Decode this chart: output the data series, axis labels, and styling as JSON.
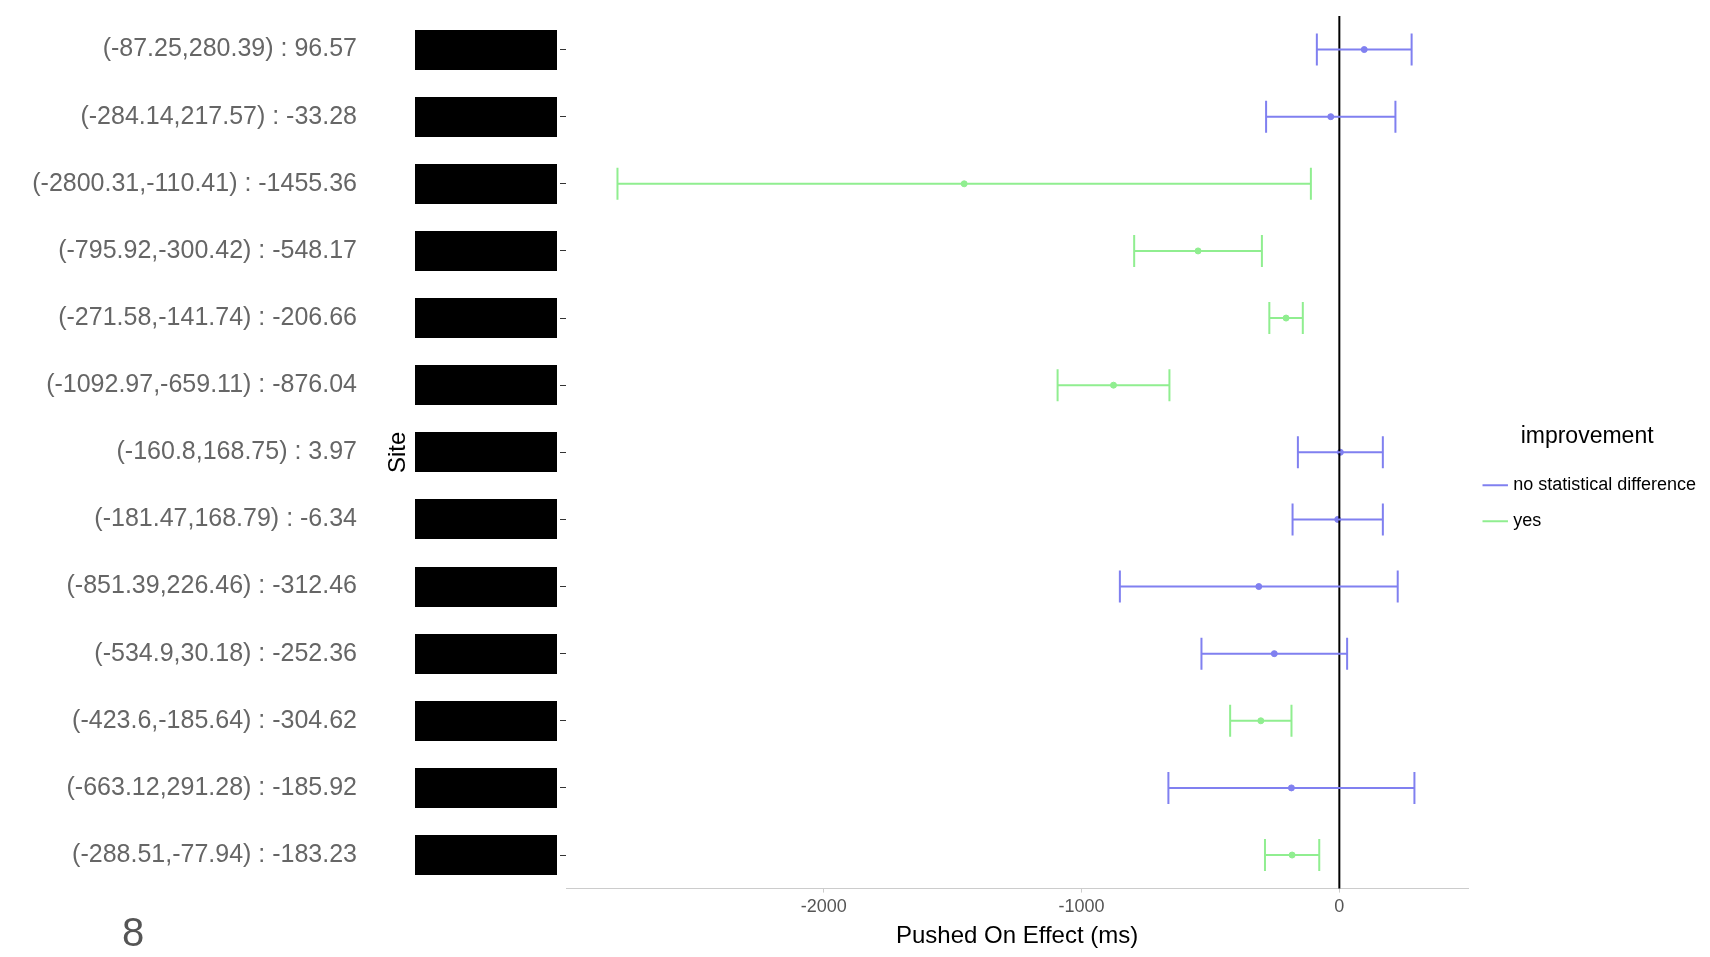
{
  "chart_data": {
    "type": "scatter",
    "orientation": "horizontal",
    "marker": "circle",
    "line_style": "solid",
    "grid": false,
    "legend": "right",
    "legend_title": "improvement",
    "xlabel": "Pushed On Effect (ms)",
    "ylabel": "Site",
    "categories": [
      "(-87.25,280.39) : 96.57",
      "(-284.14,217.57) : -33.28",
      "(-2800.31,-110.41) : -1455.36",
      "(-795.92,-300.42) : -548.17",
      "(-271.58,-141.74) : -206.66",
      "(-1092.97,-659.11) : -876.04",
      "(-160.8,168.75) : 3.97",
      "(-181.47,168.79) : -6.34",
      "(-851.39,226.46) : -312.46",
      "(-534.9,30.18) : -252.36",
      "(-423.6,-185.64) : -304.62",
      "(-663.12,291.28) : -185.92",
      "(-288.51,-77.94) : -183.23"
    ],
    "series": [
      {
        "name": "no statistical difference",
        "color": "#8080f0",
        "values": [
          96.57,
          -33.28,
          null,
          null,
          null,
          null,
          3.97,
          -6.34,
          -312.46,
          -252.36,
          null,
          -185.92,
          null
        ],
        "errors": [
          [
            -87.25,
            280.39
          ],
          [
            -284.14,
            217.57
          ],
          null,
          null,
          null,
          null,
          [
            -160.8,
            168.75
          ],
          [
            -181.47,
            168.79
          ],
          [
            -851.39,
            226.46
          ],
          [
            -534.9,
            30.18
          ],
          null,
          [
            -663.12,
            291.28
          ],
          null
        ]
      },
      {
        "name": "yes",
        "color": "#90ee90",
        "values": [
          null,
          null,
          -1455.36,
          -548.17,
          -206.66,
          -876.04,
          null,
          null,
          null,
          null,
          -304.62,
          null,
          -183.23
        ],
        "errors": [
          null,
          null,
          [
            -2800.31,
            -110.41
          ],
          [
            -795.92,
            -300.42
          ],
          [
            -271.58,
            -141.74
          ],
          [
            -1092.97,
            -659.11
          ],
          null,
          null,
          null,
          null,
          [
            -423.6,
            -185.64
          ],
          null,
          [
            -288.51,
            -77.94
          ]
        ]
      }
    ],
    "xlim": [
      -3000,
      500
    ],
    "xticks": [
      -2000,
      -1000,
      0
    ],
    "ref_lines": [
      {
        "axis": "x",
        "value": 0,
        "color": "#000000"
      }
    ],
    "annotations": [
      "8"
    ]
  }
}
